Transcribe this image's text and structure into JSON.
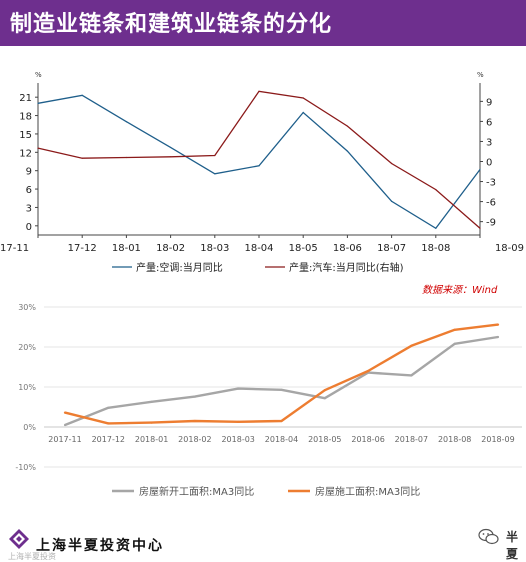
{
  "banner": {
    "title": "制造业链条和建筑业链条的分化"
  },
  "source": "数据来源：Wind",
  "footer": {
    "brand": "上海半夏投资中心",
    "watermark_small": "上海半夏投资",
    "watermark_right": "半夏"
  },
  "chart_data": [
    {
      "type": "line",
      "categories": [
        "17-11",
        "17-12",
        "18-01",
        "18-02",
        "18-03",
        "18-04",
        "18-05",
        "18-06",
        "18-07",
        "18-08",
        "18-09"
      ],
      "left_unit": "%",
      "right_unit": "%",
      "ylim_left": [
        -1.5,
        22.5
      ],
      "yticks_left": [
        0,
        3,
        6,
        9,
        12,
        15,
        18,
        21
      ],
      "ylim_right": [
        -11,
        11
      ],
      "yticks_right": [
        -9,
        -6,
        -3,
        0,
        3,
        6,
        9
      ],
      "grid": false,
      "legend_position": "bottom",
      "series": [
        {
          "name": "产量:空调:当月同比",
          "axis": "left",
          "color": "#1f5f8b",
          "values": [
            20.0,
            21.3,
            17.0,
            12.8,
            8.5,
            9.8,
            18.5,
            12.2,
            4.0,
            -0.4,
            9.2
          ]
        },
        {
          "name": "产量:汽车:当月同比(右轴)",
          "axis": "right",
          "color": "#8b1a1a",
          "values": [
            2.0,
            0.5,
            0.6,
            0.7,
            0.9,
            10.5,
            9.5,
            5.3,
            -0.3,
            -4.2,
            -10.0
          ]
        }
      ]
    },
    {
      "type": "line",
      "categories": [
        "2017-11",
        "2017-12",
        "2018-01",
        "2018-02",
        "2018-03",
        "2018-04",
        "2018-05",
        "2018-06",
        "2018-07",
        "2018-08",
        "2018-09"
      ],
      "ylim": [
        -10,
        30
      ],
      "yticks": [
        "-10%",
        "0%",
        "10%",
        "20%",
        "30%"
      ],
      "yticks_values": [
        -10,
        0,
        10,
        20,
        30
      ],
      "grid": true,
      "legend_position": "bottom",
      "series": [
        {
          "name": "房屋新开工面积:MA3同比",
          "color": "#a6a6a6",
          "values": [
            0.5,
            4.8,
            6.3,
            7.6,
            9.6,
            9.3,
            7.2,
            13.6,
            12.9,
            20.8,
            22.5
          ]
        },
        {
          "name": "房屋施工面积:MA3同比",
          "color": "#ed7d31",
          "values": [
            3.6,
            0.9,
            1.1,
            1.5,
            1.3,
            1.5,
            9.2,
            14.0,
            20.3,
            24.3,
            25.6
          ]
        }
      ]
    }
  ]
}
